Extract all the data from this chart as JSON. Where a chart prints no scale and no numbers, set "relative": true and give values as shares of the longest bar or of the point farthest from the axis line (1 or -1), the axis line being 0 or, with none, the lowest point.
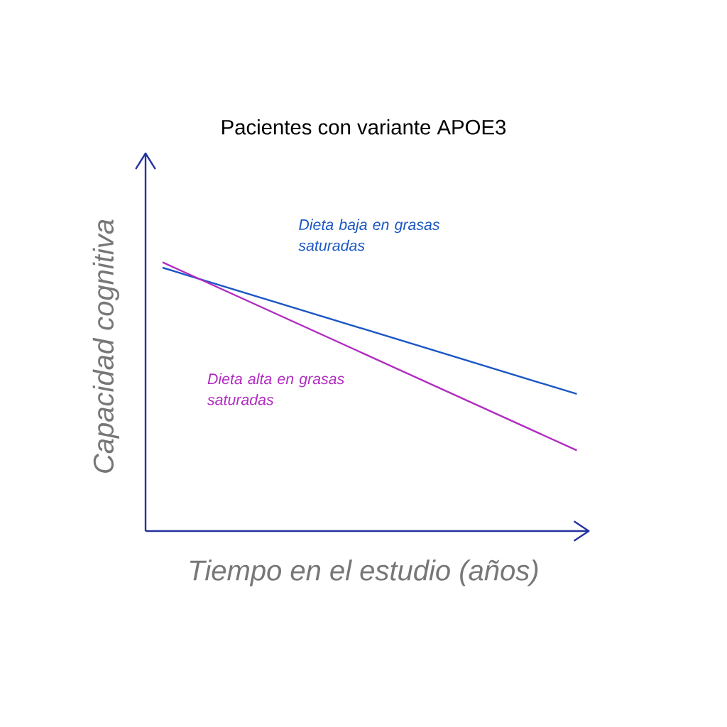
{
  "chart_data": {
    "type": "line",
    "title": "Pacientes con variante APOE3",
    "xlabel": "Tiempo en el estudio (años)",
    "ylabel": "Capacidad cognitiva",
    "categories": [
      null,
      null
    ],
    "series": [
      {
        "name": "Dieta baja en grasas saturadas",
        "color": "#1a56c4",
        "values": [
          0.98,
          0.51
        ]
      },
      {
        "name": "Dieta alta en grasas saturadas",
        "color": "#b02cc0",
        "values": [
          1.0,
          0.3
        ]
      }
    ],
    "relative": true,
    "tick_labels": false,
    "marker": "none"
  }
}
